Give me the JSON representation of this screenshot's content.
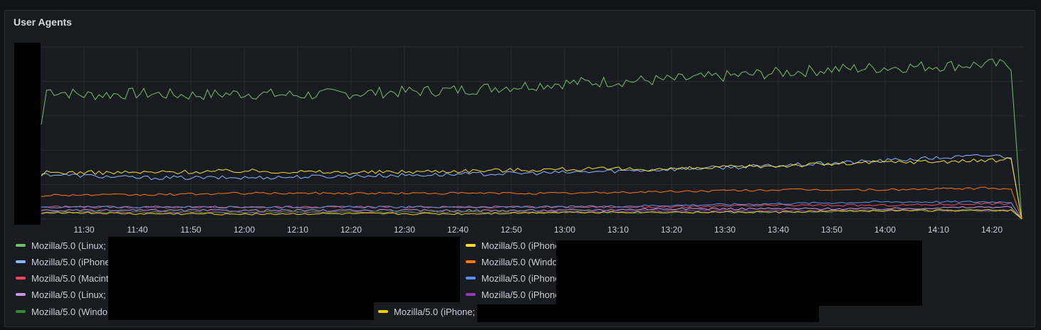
{
  "panel": {
    "title": "User Agents"
  },
  "chart_data": {
    "type": "line",
    "title": "User Agents",
    "xlabel": "",
    "ylabel": "",
    "grid": true,
    "legend_position": "bottom",
    "x_ticks": [
      "11:30",
      "11:40",
      "11:50",
      "12:00",
      "12:10",
      "12:20",
      "12:30",
      "12:40",
      "12:50",
      "13:00",
      "13:10",
      "13:20",
      "13:30",
      "13:40",
      "13:50",
      "14:00",
      "14:10",
      "14:20"
    ],
    "x_range_minutes": [
      682,
      866
    ],
    "x_minutes_key_points": [
      682,
      866
    ],
    "y_range": [
      0,
      100
    ],
    "series": [
      {
        "name": "Mozilla/5.0 (Linux;",
        "color": "#73bf69",
        "points": [
          [
            682,
            55
          ],
          [
            683,
            75
          ],
          [
            690,
            72
          ],
          [
            700,
            73
          ],
          [
            710,
            72
          ],
          [
            720,
            73
          ],
          [
            730,
            72
          ],
          [
            740,
            73
          ],
          [
            750,
            74
          ],
          [
            760,
            75
          ],
          [
            770,
            77
          ],
          [
            780,
            79
          ],
          [
            790,
            80
          ],
          [
            800,
            81
          ],
          [
            810,
            83
          ],
          [
            820,
            85
          ],
          [
            830,
            87
          ],
          [
            840,
            88
          ],
          [
            850,
            89
          ],
          [
            860,
            90
          ],
          [
            864,
            89
          ],
          [
            866,
            0
          ]
        ]
      },
      {
        "name": "Mozilla/5.0 (iPhone",
        "color": "#8ab8ff",
        "points": [
          [
            682,
            26
          ],
          [
            683,
            26
          ],
          [
            700,
            24
          ],
          [
            720,
            24
          ],
          [
            740,
            25
          ],
          [
            760,
            26
          ],
          [
            780,
            27
          ],
          [
            800,
            29
          ],
          [
            820,
            31
          ],
          [
            840,
            34
          ],
          [
            860,
            37
          ],
          [
            864,
            36
          ],
          [
            866,
            0
          ]
        ]
      },
      {
        "name": "Mozilla/5.0 (iPhone;",
        "color": "#fade2a",
        "points": [
          [
            682,
            25
          ],
          [
            683,
            27
          ],
          [
            700,
            27
          ],
          [
            720,
            28
          ],
          [
            740,
            27
          ],
          [
            760,
            28
          ],
          [
            780,
            29
          ],
          [
            800,
            29
          ],
          [
            820,
            31
          ],
          [
            840,
            33
          ],
          [
            860,
            34
          ],
          [
            864,
            35
          ],
          [
            866,
            0
          ]
        ]
      },
      {
        "name": "Mozilla/5.0 (Windo",
        "color": "#ff780a",
        "points": [
          [
            682,
            13
          ],
          [
            683,
            14
          ],
          [
            700,
            14
          ],
          [
            720,
            15
          ],
          [
            740,
            15
          ],
          [
            760,
            15
          ],
          [
            780,
            15
          ],
          [
            800,
            16
          ],
          [
            820,
            17
          ],
          [
            840,
            17
          ],
          [
            860,
            18
          ],
          [
            864,
            17
          ],
          [
            866,
            0
          ]
        ]
      },
      {
        "name": "Mozilla/5.0 (Macint",
        "color": "#f2495c",
        "points": [
          [
            682,
            7
          ],
          [
            683,
            7
          ],
          [
            700,
            7
          ],
          [
            720,
            7
          ],
          [
            740,
            7
          ],
          [
            760,
            7
          ],
          [
            780,
            7
          ],
          [
            800,
            7
          ],
          [
            820,
            8
          ],
          [
            840,
            8
          ],
          [
            860,
            9
          ],
          [
            864,
            9
          ],
          [
            866,
            0
          ]
        ]
      },
      {
        "name": "Mozilla/5.0 (iPhone",
        "color": "#5794f2",
        "points": [
          [
            682,
            7
          ],
          [
            683,
            7
          ],
          [
            700,
            7
          ],
          [
            720,
            7
          ],
          [
            740,
            7
          ],
          [
            760,
            7
          ],
          [
            780,
            7
          ],
          [
            800,
            8
          ],
          [
            820,
            9
          ],
          [
            840,
            10
          ],
          [
            860,
            10
          ],
          [
            864,
            10
          ],
          [
            866,
            0
          ]
        ]
      },
      {
        "name": "Mozilla/5.0 (Linux;",
        "color": "#ca95e5",
        "points": [
          [
            682,
            5
          ],
          [
            683,
            5
          ],
          [
            700,
            5
          ],
          [
            720,
            5
          ],
          [
            740,
            5
          ],
          [
            760,
            5
          ],
          [
            780,
            5
          ],
          [
            800,
            6
          ],
          [
            820,
            6
          ],
          [
            840,
            6
          ],
          [
            860,
            7
          ],
          [
            864,
            7
          ],
          [
            866,
            0
          ]
        ]
      },
      {
        "name": "Mozilla/5.0 (iPhone",
        "color": "#8f3bb8",
        "points": [
          [
            682,
            4
          ],
          [
            683,
            4
          ],
          [
            700,
            4
          ],
          [
            720,
            4
          ],
          [
            740,
            4
          ],
          [
            760,
            4
          ],
          [
            780,
            4
          ],
          [
            800,
            5
          ],
          [
            820,
            5
          ],
          [
            840,
            5
          ],
          [
            860,
            5
          ],
          [
            864,
            5
          ],
          [
            866,
            0
          ]
        ]
      },
      {
        "name": "Mozilla/5.0 (Windo",
        "color": "#37872d",
        "points": [
          [
            682,
            3
          ],
          [
            683,
            4
          ],
          [
            700,
            4
          ],
          [
            720,
            4
          ],
          [
            740,
            4
          ],
          [
            760,
            4
          ],
          [
            780,
            4
          ],
          [
            800,
            4
          ],
          [
            820,
            4
          ],
          [
            840,
            5
          ],
          [
            860,
            5
          ],
          [
            864,
            5
          ],
          [
            866,
            0
          ]
        ]
      },
      {
        "name": "Mozilla/5.0 (iPhone;",
        "color": "#f2cc0c",
        "points": [
          [
            682,
            3
          ],
          [
            683,
            4
          ],
          [
            700,
            3
          ],
          [
            720,
            3
          ],
          [
            740,
            3
          ],
          [
            760,
            3
          ],
          [
            780,
            4
          ],
          [
            800,
            4
          ],
          [
            820,
            4
          ],
          [
            840,
            5
          ],
          [
            860,
            5
          ],
          [
            864,
            5
          ],
          [
            866,
            0
          ]
        ]
      }
    ]
  },
  "legend": [
    {
      "label": "Mozilla/5.0 (Linux;",
      "color": "#73bf69"
    },
    {
      "label": "Mozilla/5.0 (iPhone",
      "color": "#8ab8ff"
    },
    {
      "label": "Mozilla/5.0 (Macint",
      "color": "#f2495c"
    },
    {
      "label": "Mozilla/5.0 (Linux;",
      "color": "#ca95e5"
    },
    {
      "label": "Mozilla/5.0 (Windo",
      "color": "#37872d"
    },
    {
      "label": "Mozilla/5.0 (iPhone",
      "color": "#fade2a"
    },
    {
      "label": "Mozilla/5.0 (Windo",
      "color": "#ff780a"
    },
    {
      "label": "Mozilla/5.0 (iPhone",
      "color": "#5794f2"
    },
    {
      "label": "Mozilla/5.0 (iPhone",
      "color": "#8f3bb8"
    },
    {
      "label": "Mozilla/5.0 (iPhone;",
      "color": "#f2cc0c"
    }
  ]
}
